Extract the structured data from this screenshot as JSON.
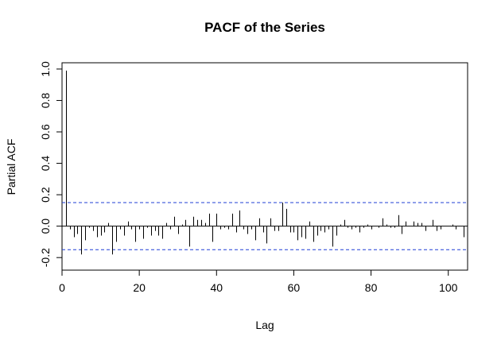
{
  "chart_data": {
    "type": "bar",
    "title": "PACF of the Series",
    "xlabel": "Lag",
    "ylabel": "Partial ACF",
    "xlim": [
      0,
      105
    ],
    "ylim": [
      -0.28,
      1.04
    ],
    "x_ticks": [
      0,
      20,
      40,
      60,
      80,
      100
    ],
    "x_tick_labels": [
      "0",
      "20",
      "40",
      "60",
      "80",
      "100"
    ],
    "y_ticks": [
      -0.2,
      0.0,
      0.2,
      0.4,
      0.6,
      0.8,
      1.0
    ],
    "y_tick_labels": [
      "-0.2",
      "0.0",
      "0.2",
      "0.4",
      "0.6",
      "0.8",
      "1.0"
    ],
    "confidence_band": 0.15,
    "series": [
      {
        "lags": [
          1,
          2,
          3,
          4,
          5,
          6,
          7,
          8,
          9,
          10,
          11,
          12,
          13,
          14,
          15,
          16,
          17,
          18,
          19,
          20,
          21,
          22,
          23,
          24,
          25,
          26,
          27,
          28,
          29,
          30,
          31,
          32,
          33,
          34,
          35,
          36,
          37,
          38,
          39,
          40,
          41,
          42,
          43,
          44,
          45,
          46,
          47,
          48,
          49,
          50,
          51,
          52,
          53,
          54,
          55,
          56,
          57,
          58,
          59,
          60,
          61,
          62,
          63,
          64,
          65,
          66,
          67,
          68,
          69,
          70,
          71,
          72,
          73,
          74,
          75,
          76,
          77,
          78,
          79,
          80,
          81,
          82,
          83,
          84,
          85,
          86,
          87,
          88,
          89,
          90,
          91,
          92,
          93,
          94,
          95,
          96,
          97,
          98,
          99,
          100,
          101,
          102,
          103,
          104
        ],
        "values": [
          0.99,
          -0.02,
          -0.07,
          -0.05,
          -0.18,
          -0.09,
          -0.01,
          -0.03,
          -0.07,
          -0.06,
          -0.04,
          0.02,
          -0.18,
          -0.1,
          -0.02,
          -0.06,
          0.03,
          -0.02,
          -0.1,
          -0.02,
          -0.08,
          -0.01,
          -0.06,
          -0.03,
          -0.06,
          -0.08,
          0.02,
          -0.02,
          0.06,
          -0.05,
          0.01,
          0.04,
          -0.13,
          0.06,
          0.04,
          0.04,
          0.02,
          0.08,
          -0.1,
          0.08,
          -0.02,
          -0.01,
          -0.02,
          0.08,
          -0.04,
          0.1,
          -0.02,
          -0.05,
          -0.02,
          -0.09,
          0.05,
          -0.04,
          -0.11,
          0.05,
          -0.03,
          -0.03,
          0.15,
          0.11,
          -0.04,
          -0.04,
          -0.09,
          -0.07,
          -0.08,
          0.03,
          -0.1,
          -0.06,
          -0.03,
          -0.04,
          -0.02,
          -0.13,
          -0.06,
          0.01,
          0.04,
          -0.01,
          -0.02,
          -0.01,
          -0.04,
          -0.01,
          0.01,
          -0.02,
          0.0,
          -0.01,
          0.05,
          0.01,
          -0.01,
          -0.01,
          0.07,
          -0.05,
          0.03,
          0.0,
          0.03,
          0.02,
          0.02,
          -0.03,
          0.0,
          0.04,
          -0.03,
          -0.02,
          0.0,
          0.0,
          0.01,
          -0.02,
          0.0,
          -0.07
        ]
      }
    ]
  }
}
